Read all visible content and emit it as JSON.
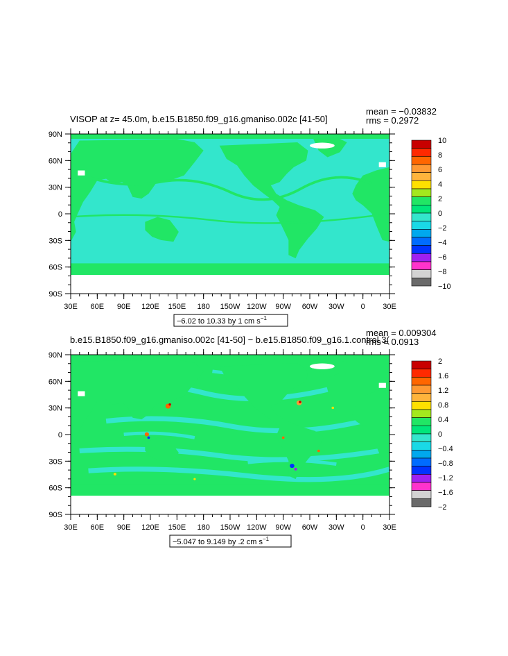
{
  "chart_data": [
    {
      "type": "heatmap",
      "title": "VISOP at z=  45.0m, b.e15.B1850.f09_g16.gmaniso.002c  [41-50]",
      "stats": {
        "mean": "mean = −0.03832",
        "rms": "rms = 0.2972"
      },
      "x_ticks": [
        "30E",
        "60E",
        "90E",
        "120E",
        "150E",
        "180",
        "150W",
        "120W",
        "90W",
        "60W",
        "30W",
        "0",
        "30E"
      ],
      "y_ticks": [
        "90N",
        "60N",
        "30N",
        "0",
        "30S",
        "60S",
        "90S"
      ],
      "range_label": "−6.02 to 10.33 by 1 cm s",
      "range_unit_exp": "−1",
      "colorbar": {
        "labels": [
          "10",
          "8",
          "6",
          "4",
          "2",
          "0",
          "−2",
          "−4",
          "−6",
          "−8",
          "−10"
        ],
        "colors": [
          "#c80000",
          "#ff2a00",
          "#ff6600",
          "#ff9933",
          "#ffb43c",
          "#ffe000",
          "#a4e81e",
          "#21e665",
          "#00e67a",
          "#33e6cc",
          "#1ad9e6",
          "#00a8ee",
          "#006cff",
          "#0033ff",
          "#a020f0",
          "#ff33cc",
          "#d3d3d3",
          "#6a6a6a"
        ]
      },
      "dominant_values": [
        "0",
        "−0.5"
      ]
    },
    {
      "type": "heatmap",
      "title": "b.e15.B1850.f09_g16.gmaniso.002c  [41-50]  −  b.e15.B1850.f09_g16.1.control.3(",
      "stats": {
        "mean": "mean = 0.009304",
        "rms": "rms = 0.0913"
      },
      "x_ticks": [
        "30E",
        "60E",
        "90E",
        "120E",
        "150E",
        "180",
        "150W",
        "120W",
        "90W",
        "60W",
        "30W",
        "0",
        "30E"
      ],
      "y_ticks": [
        "90N",
        "60N",
        "30N",
        "0",
        "30S",
        "60S",
        "90S"
      ],
      "range_label": "−5.047 to 9.149 by .2 cm s",
      "range_unit_exp": "−1",
      "colorbar": {
        "labels": [
          "2",
          "1.6",
          "1.2",
          "0.8",
          "0.4",
          "0",
          "−0.4",
          "−0.8",
          "−1.2",
          "−1.6",
          "−2"
        ],
        "colors": [
          "#c80000",
          "#ff2a00",
          "#ff6600",
          "#ff9933",
          "#ffb43c",
          "#ffe000",
          "#a4e81e",
          "#21e665",
          "#00e67a",
          "#33e6cc",
          "#1ad9e6",
          "#00a8ee",
          "#006cff",
          "#0033ff",
          "#a020f0",
          "#ff33cc",
          "#d3d3d3",
          "#6a6a6a"
        ]
      },
      "dominant_values": [
        "0",
        "−0.1"
      ]
    }
  ]
}
